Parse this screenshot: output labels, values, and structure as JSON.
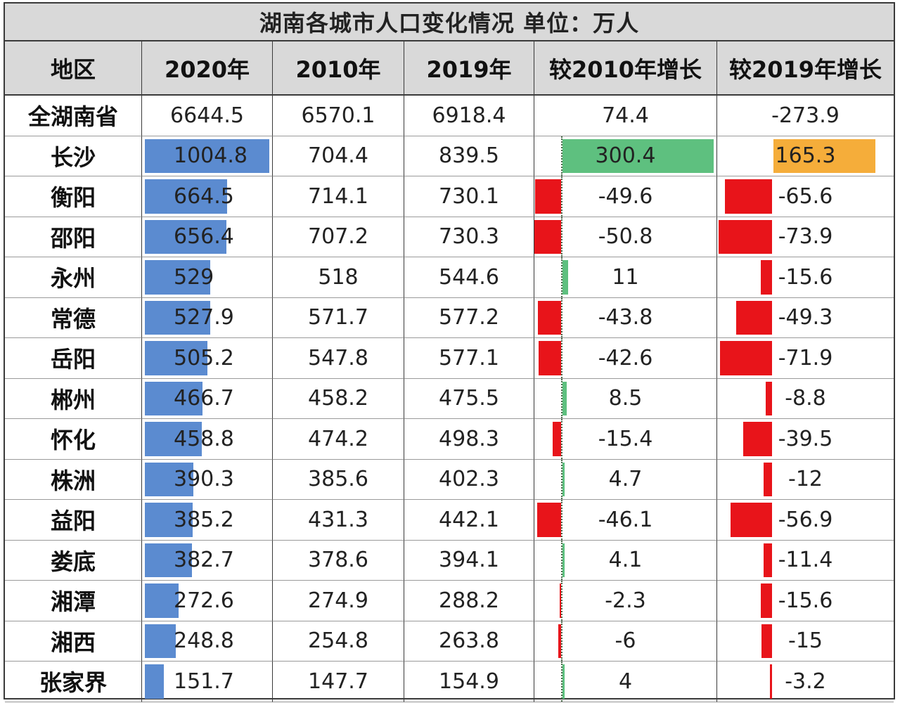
{
  "title": "湖南各城市人口变化情况   单位：万人",
  "headers": [
    "地区",
    "2020年",
    "2010年",
    "2019年",
    "较2010年增长",
    "较2019年增长"
  ],
  "colors": {
    "bar_2020": "#5b8bd0",
    "positive": "#5ec07f",
    "negative": "#e8141a",
    "highlight": "#f5ad3a",
    "header_bg": "#d9d9d9"
  },
  "rows": [
    {
      "region": "全湖南省",
      "v2020": "6644.5",
      "v2010": "6570.1",
      "v2019": "6918.4",
      "d2010": "74.4",
      "d2019": "-273.9"
    },
    {
      "region": "长沙",
      "v2020": "1004.8",
      "v2010": "704.4",
      "v2019": "839.5",
      "d2010": "300.4",
      "d2019": "165.3"
    },
    {
      "region": "衡阳",
      "v2020": "664.5",
      "v2010": "714.1",
      "v2019": "730.1",
      "d2010": "-49.6",
      "d2019": "-65.6"
    },
    {
      "region": "邵阳",
      "v2020": "656.4",
      "v2010": "707.2",
      "v2019": "730.3",
      "d2010": "-50.8",
      "d2019": "-73.9"
    },
    {
      "region": "永州",
      "v2020": "529",
      "v2010": "518",
      "v2019": "544.6",
      "d2010": "11",
      "d2019": "-15.6"
    },
    {
      "region": "常德",
      "v2020": "527.9",
      "v2010": "571.7",
      "v2019": "577.2",
      "d2010": "-43.8",
      "d2019": "-49.3"
    },
    {
      "region": "岳阳",
      "v2020": "505.2",
      "v2010": "547.8",
      "v2019": "577.1",
      "d2010": "-42.6",
      "d2019": "-71.9"
    },
    {
      "region": "郴州",
      "v2020": "466.7",
      "v2010": "458.2",
      "v2019": "475.5",
      "d2010": "8.5",
      "d2019": "-8.8"
    },
    {
      "region": "怀化",
      "v2020": "458.8",
      "v2010": "474.2",
      "v2019": "498.3",
      "d2010": "-15.4",
      "d2019": "-39.5"
    },
    {
      "region": "株洲",
      "v2020": "390.3",
      "v2010": "385.6",
      "v2019": "402.3",
      "d2010": "4.7",
      "d2019": "-12"
    },
    {
      "region": "益阳",
      "v2020": "385.2",
      "v2010": "431.3",
      "v2019": "442.1",
      "d2010": "-46.1",
      "d2019": "-56.9"
    },
    {
      "region": "娄底",
      "v2020": "382.7",
      "v2010": "378.6",
      "v2019": "394.1",
      "d2010": "4.1",
      "d2019": "-11.4"
    },
    {
      "region": "湘潭",
      "v2020": "272.6",
      "v2010": "274.9",
      "v2019": "288.2",
      "d2010": "-2.3",
      "d2019": "-15.6"
    },
    {
      "region": "湘西",
      "v2020": "248.8",
      "v2010": "254.8",
      "v2019": "263.8",
      "d2010": "-6",
      "d2019": "-15"
    },
    {
      "region": "张家界",
      "v2020": "151.7",
      "v2010": "147.7",
      "v2019": "154.9",
      "d2010": "4",
      "d2019": "-3.2"
    }
  ],
  "chart_data": {
    "type": "table",
    "title": "湖南各城市人口变化情况   单位：万人",
    "columns": [
      "地区",
      "2020年",
      "2010年",
      "2019年",
      "较2010年增长",
      "较2019年增长"
    ],
    "categories": [
      "全湖南省",
      "长沙",
      "衡阳",
      "邵阳",
      "永州",
      "常德",
      "岳阳",
      "郴州",
      "怀化",
      "株洲",
      "益阳",
      "娄底",
      "湘潭",
      "湘西",
      "张家界"
    ],
    "series": [
      {
        "name": "2020年",
        "values": [
          6644.5,
          1004.8,
          664.5,
          656.4,
          529,
          527.9,
          505.2,
          466.7,
          458.8,
          390.3,
          385.2,
          382.7,
          272.6,
          248.8,
          151.7
        ]
      },
      {
        "name": "2010年",
        "values": [
          6570.1,
          704.4,
          714.1,
          707.2,
          518,
          571.7,
          547.8,
          458.2,
          474.2,
          385.6,
          431.3,
          378.6,
          274.9,
          254.8,
          147.7
        ]
      },
      {
        "name": "2019年",
        "values": [
          6918.4,
          839.5,
          730.1,
          730.3,
          544.6,
          577.2,
          577.1,
          475.5,
          498.3,
          402.3,
          442.1,
          394.1,
          288.2,
          263.8,
          154.9
        ]
      },
      {
        "name": "较2010年增长",
        "values": [
          74.4,
          300.4,
          -49.6,
          -50.8,
          11,
          -43.8,
          -42.6,
          8.5,
          -15.4,
          4.7,
          -46.1,
          4.1,
          -2.3,
          -6,
          4
        ]
      },
      {
        "name": "较2019年增长",
        "values": [
          -273.9,
          165.3,
          -65.6,
          -73.9,
          -15.6,
          -49.3,
          -71.9,
          -8.8,
          -39.5,
          -12,
          -56.9,
          -11.4,
          -15.6,
          -15,
          -3.2
        ]
      }
    ]
  }
}
